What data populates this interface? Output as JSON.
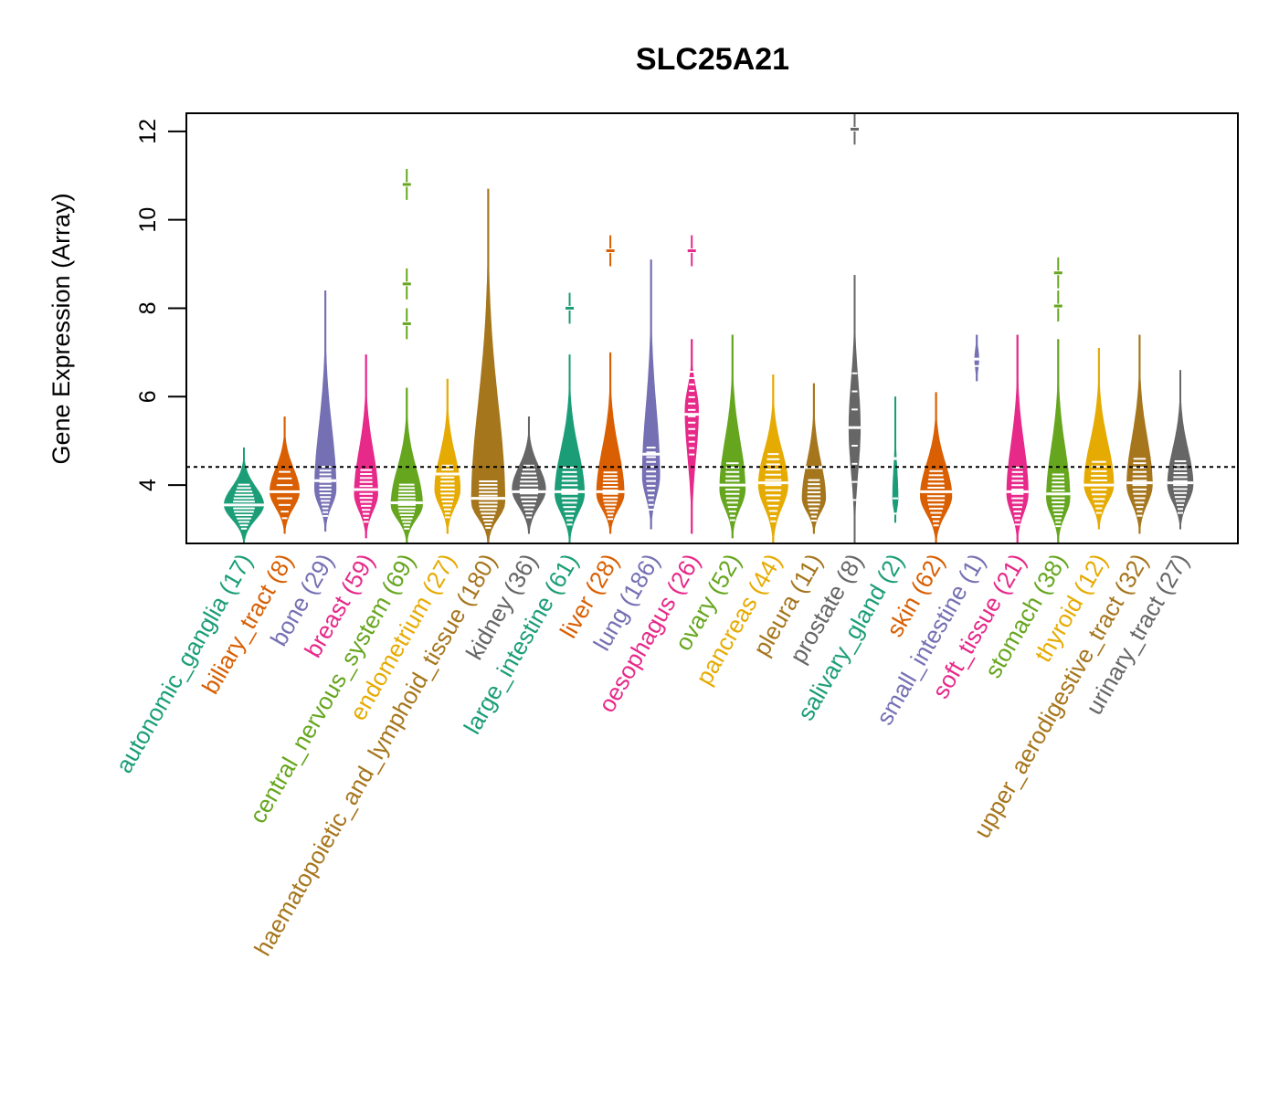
{
  "chart_data": {
    "type": "violin",
    "title": "SLC25A21",
    "xlabel": "",
    "ylabel": "Gene Expression (Array)",
    "ylim": [
      2.68,
      12.41
    ],
    "yticks": [
      4,
      6,
      8,
      10,
      12
    ],
    "reference_line": 4.41,
    "grid": false,
    "palette": [
      "#1B9E77",
      "#D95F02",
      "#7570B3",
      "#E7298A",
      "#66A61E",
      "#E6AB02",
      "#A6761D",
      "#666666"
    ],
    "categories": [
      {
        "name": "autonomic_ganglia",
        "n": 17,
        "min": 2.7,
        "max": 4.85,
        "mode": 3.55,
        "median": 3.55,
        "width": 1.0,
        "outliers": []
      },
      {
        "name": "biliary_tract",
        "n": 8,
        "min": 2.9,
        "max": 5.55,
        "mode": 3.85,
        "median": 3.85,
        "width": 0.75,
        "outliers": []
      },
      {
        "name": "bone",
        "n": 29,
        "min": 2.95,
        "max": 8.4,
        "mode": 3.9,
        "median": 4.1,
        "width": 0.55,
        "outliers": []
      },
      {
        "name": "breast",
        "n": 59,
        "min": 2.8,
        "max": 6.95,
        "mode": 3.8,
        "median": 3.9,
        "width": 0.6,
        "outliers": []
      },
      {
        "name": "central_nervous_system",
        "n": 69,
        "min": 2.7,
        "max": 6.2,
        "mode": 3.55,
        "median": 3.6,
        "width": 0.8,
        "outliers": [
          7.65,
          8.55,
          10.8
        ]
      },
      {
        "name": "endometrium",
        "n": 27,
        "min": 2.9,
        "max": 6.4,
        "mode": 3.9,
        "median": 4.25,
        "width": 0.65,
        "outliers": []
      },
      {
        "name": "haematopoietic_and_lymphoid_tissue",
        "n": 180,
        "min": 2.7,
        "max": 10.7,
        "mode": 3.6,
        "median": 3.7,
        "width": 0.85,
        "outliers": []
      },
      {
        "name": "kidney",
        "n": 36,
        "min": 2.9,
        "max": 5.55,
        "mode": 3.9,
        "median": 3.85,
        "width": 0.85,
        "outliers": []
      },
      {
        "name": "large_intestine",
        "n": 61,
        "min": 2.7,
        "max": 6.95,
        "mode": 3.8,
        "median": 3.85,
        "width": 0.75,
        "outliers": [
          8.0
        ]
      },
      {
        "name": "liver",
        "n": 28,
        "min": 2.9,
        "max": 7.0,
        "mode": 3.8,
        "median": 3.85,
        "width": 0.7,
        "outliers": [
          9.3
        ]
      },
      {
        "name": "lung",
        "n": 186,
        "min": 3.0,
        "max": 9.1,
        "mode": 4.2,
        "median": 4.7,
        "width": 0.45,
        "outliers": []
      },
      {
        "name": "oesophagus",
        "n": 26,
        "min": 2.9,
        "max": 7.3,
        "mode": 5.7,
        "median": 5.6,
        "width": 0.35,
        "outliers": [
          9.3
        ]
      },
      {
        "name": "ovary",
        "n": 52,
        "min": 2.8,
        "max": 7.4,
        "mode": 3.9,
        "median": 4.0,
        "width": 0.65,
        "outliers": []
      },
      {
        "name": "pancreas",
        "n": 44,
        "min": 2.7,
        "max": 6.5,
        "mode": 4.0,
        "median": 4.05,
        "width": 0.75,
        "outliers": []
      },
      {
        "name": "pleura",
        "n": 11,
        "min": 2.9,
        "max": 6.3,
        "mode": 3.7,
        "median": 4.4,
        "width": 0.6,
        "outliers": []
      },
      {
        "name": "prostate",
        "n": 8,
        "min": 2.7,
        "max": 8.75,
        "mode": 5.3,
        "median": 5.3,
        "width": 0.3,
        "outliers": [
          12.05
        ]
      },
      {
        "name": "salivary_gland",
        "n": 2,
        "min": 3.15,
        "max": 6.0,
        "mode": 3.7,
        "median": 4.6,
        "width": 0.15,
        "outliers": []
      },
      {
        "name": "skin",
        "n": 62,
        "min": 2.7,
        "max": 6.1,
        "mode": 3.75,
        "median": 3.85,
        "width": 0.8,
        "outliers": []
      },
      {
        "name": "small_intestine",
        "n": 1,
        "min": 6.35,
        "max": 7.4,
        "mode": 6.85,
        "median": 6.85,
        "width": 0.12,
        "outliers": []
      },
      {
        "name": "soft_tissue",
        "n": 21,
        "min": 2.7,
        "max": 7.4,
        "mode": 3.8,
        "median": 3.85,
        "width": 0.55,
        "outliers": []
      },
      {
        "name": "stomach",
        "n": 38,
        "min": 2.7,
        "max": 7.3,
        "mode": 3.7,
        "median": 3.8,
        "width": 0.6,
        "outliers": [
          8.05,
          8.8
        ]
      },
      {
        "name": "thyroid",
        "n": 12,
        "min": 3.0,
        "max": 7.1,
        "mode": 4.0,
        "median": 4.0,
        "width": 0.75,
        "outliers": []
      },
      {
        "name": "upper_aerodigestive_tract",
        "n": 32,
        "min": 2.9,
        "max": 7.4,
        "mode": 4.0,
        "median": 4.05,
        "width": 0.65,
        "outliers": []
      },
      {
        "name": "urinary_tract",
        "n": 27,
        "min": 3.0,
        "max": 6.6,
        "mode": 4.0,
        "median": 4.05,
        "width": 0.65,
        "outliers": []
      }
    ]
  }
}
